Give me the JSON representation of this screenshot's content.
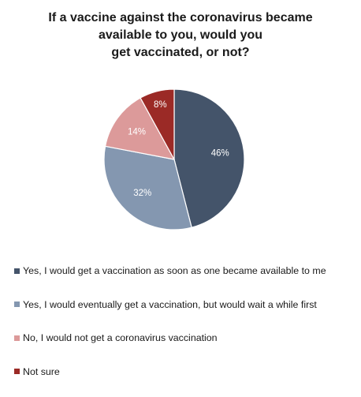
{
  "chart_data": {
    "type": "pie",
    "title_lines": [
      "If a vaccine against the coronavirus became",
      "available to you, would you",
      "get vaccinated, or not?"
    ],
    "slices": [
      {
        "label": "Yes, I would get a vaccination as soon as one became available to me",
        "value": 46,
        "value_label": "46%",
        "color": "#44546a"
      },
      {
        "label": "Yes, I would eventually get a vaccination, but would wait a while first",
        "value": 32,
        "value_label": "32%",
        "color": "#8497b0"
      },
      {
        "label": "No, I would not get a coronavirus vaccination",
        "value": 14,
        "value_label": "14%",
        "color": "#dc9a9a"
      },
      {
        "label": "Not sure",
        "value": 8,
        "value_label": "8%",
        "color": "#9b2a26"
      }
    ],
    "start_angle": "top",
    "direction": "clockwise",
    "legend_position": "bottom",
    "label_color": "#ffffff"
  }
}
